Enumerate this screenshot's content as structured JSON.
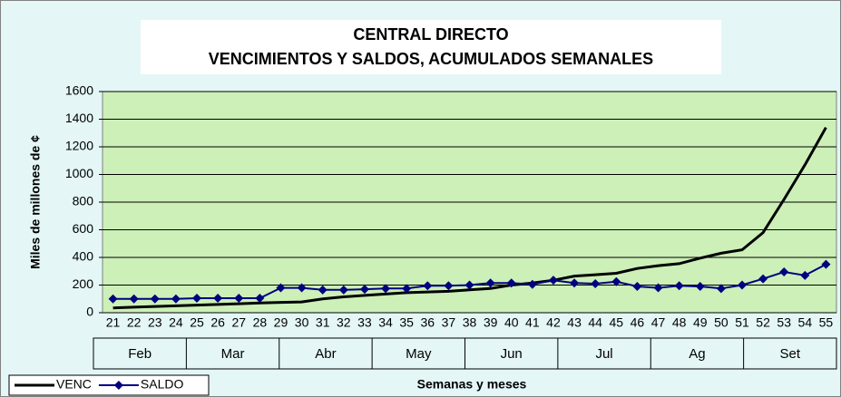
{
  "chart_data": {
    "type": "line",
    "title": [
      "CENTRAL DIRECTO",
      "VENCIMIENTOS Y SALDOS, ACUMULADOS SEMANALES"
    ],
    "x_label": "Semanas y meses",
    "y_label": "Miles de millones de ¢",
    "categories": [
      "21",
      "22",
      "23",
      "24",
      "25",
      "26",
      "27",
      "28",
      "29",
      "30",
      "31",
      "32",
      "33",
      "34",
      "35",
      "36",
      "37",
      "38",
      "39",
      "40",
      "41",
      "42",
      "43",
      "44",
      "45",
      "46",
      "47",
      "48",
      "49",
      "50",
      "51",
      "52",
      "53",
      "54",
      "55"
    ],
    "months": [
      "Feb",
      "Mar",
      "Abr",
      "May",
      "Jun",
      "Jul",
      "Ag",
      "Set"
    ],
    "series": [
      {
        "name": "VENC",
        "color": "#000000",
        "marker": false,
        "values": [
          35,
          40,
          45,
          50,
          55,
          60,
          65,
          70,
          75,
          78,
          100,
          115,
          125,
          135,
          145,
          150,
          155,
          165,
          175,
          200,
          215,
          235,
          265,
          275,
          285,
          320,
          340,
          355,
          395,
          430,
          455,
          580,
          820,
          1070,
          1340
        ]
      },
      {
        "name": "SALDO",
        "color": "#000080",
        "marker": true,
        "values": [
          100,
          100,
          100,
          100,
          105,
          105,
          105,
          105,
          180,
          180,
          165,
          165,
          170,
          175,
          175,
          195,
          195,
          200,
          215,
          215,
          205,
          235,
          215,
          210,
          225,
          190,
          180,
          195,
          190,
          175,
          200,
          245,
          295,
          270,
          350
        ]
      }
    ],
    "ylim": [
      0,
      1600
    ],
    "yticks": [
      0,
      200,
      400,
      600,
      800,
      1000,
      1200,
      1400,
      1600
    ],
    "grid": true,
    "legend": "bottom-left"
  }
}
